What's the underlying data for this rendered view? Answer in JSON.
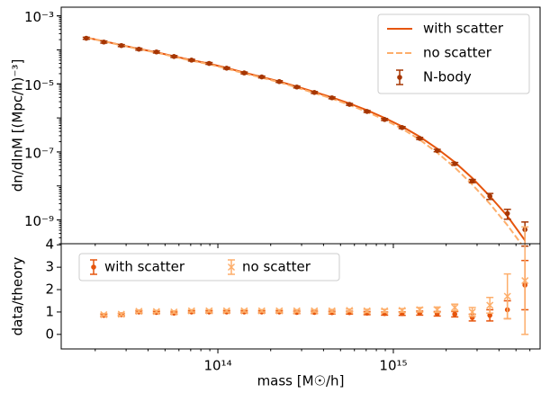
{
  "chart_data": [
    {
      "type": "line",
      "ylabel": "dn/dlnM [(Mpc/h)⁻³]",
      "x": [
        17780000000000.0,
        22390000000000.0,
        28180000000000.0,
        35480000000000.0,
        44670000000000.0,
        56230000000000.0,
        70790000000000.0,
        89130000000000.0,
        112200000000000.0,
        141300000000000.0,
        177800000000000.0,
        223900000000000.0,
        281800000000000.0,
        354800000000000.0,
        446700000000000.0,
        562300000000000.0,
        707900000000000.0,
        891300000000000.0,
        1122000000000000.0,
        1413000000000000.0,
        1778000000000000.0,
        2239000000000000.0,
        2818000000000000.0,
        3548000000000000.0,
        4467000000000000.0,
        5623000000000000.0
      ],
      "series": [
        {
          "name": "with scatter",
          "color": "#e6550d",
          "style": "solid",
          "values": [
            0.00023,
            0.00018,
            0.000138,
            0.000107,
            8.5e-05,
            6.5e-05,
            5e-05,
            3.95e-05,
            2.95e-05,
            2.15e-05,
            1.6e-05,
            1.18e-05,
            8.3e-06,
            5.8e-06,
            4e-06,
            2.65e-06,
            1.68e-06,
            1e-06,
            5.6e-07,
            2.8e-07,
            1.25e-07,
            5e-08,
            1.7e-08,
            5e-09,
            1.3e-09,
            2.5e-10
          ]
        },
        {
          "name": "no scatter",
          "color": "#fdae6b",
          "style": "dashed",
          "values": [
            0.00023,
            0.000178,
            0.000136,
            0.000105,
            8.3e-05,
            6.3e-05,
            4.8e-05,
            3.8e-05,
            2.8e-05,
            2.05e-05,
            1.52e-05,
            1.12e-05,
            7.8e-06,
            5.4e-06,
            3.7e-06,
            2.4e-06,
            1.5e-06,
            8.8e-07,
            4.8e-07,
            2.3e-07,
            9.5e-08,
            3.5e-08,
            1.1e-08,
            3e-09,
            7e-10,
            1.4e-10
          ]
        },
        {
          "name": "N-body",
          "color": "#a63603",
          "style": "errorbar",
          "values": [
            0.00022,
            0.00017,
            0.000134,
            0.000105,
            8.7e-05,
            6.4e-05,
            5e-05,
            4e-05,
            2.9e-05,
            2.1e-05,
            1.6e-05,
            1.17e-05,
            8.1e-06,
            5.6e-06,
            3.9e-06,
            2.5e-06,
            1.55e-06,
            9e-07,
            5.2e-07,
            2.5e-07,
            1.1e-07,
            4.5e-08,
            1.4e-08,
            5e-09,
            1.55e-09,
            5.2e-10
          ],
          "errors": [
            1.5e-05,
            1.2e-05,
            9e-06,
            7e-06,
            6e-06,
            4e-06,
            3e-06,
            2.5e-06,
            1.8e-06,
            1.3e-06,
            1e-06,
            7e-07,
            5e-07,
            3.5e-07,
            2.5e-07,
            1.6e-07,
            1e-07,
            6e-08,
            3.5e-08,
            1.8e-08,
            9e-09,
            4e-09,
            1.5e-09,
            1e-09,
            5e-10,
            3.5e-10
          ]
        }
      ],
      "xlim": [
        12800000000000.0,
        6860000000000000.0
      ],
      "log_x": true,
      "ylim": [
        2e-10,
        0.0018
      ],
      "log_y": true,
      "yticks": [
        {
          "value": 1e-09,
          "label": "10⁻⁹"
        },
        {
          "value": 1e-07,
          "label": "10⁻⁷"
        },
        {
          "value": 1e-05,
          "label": "10⁻⁵"
        },
        {
          "value": 0.001,
          "label": "10⁻³"
        }
      ],
      "minor_ticks": true,
      "legend": "upper right"
    },
    {
      "type": "errorbar",
      "xlabel": "mass [M☉/h]",
      "ylabel": "data/theory",
      "x": [
        17780000000000.0,
        22390000000000.0,
        28180000000000.0,
        35480000000000.0,
        44670000000000.0,
        56230000000000.0,
        70790000000000.0,
        89130000000000.0,
        112200000000000.0,
        141300000000000.0,
        177800000000000.0,
        223900000000000.0,
        281800000000000.0,
        354800000000000.0,
        446700000000000.0,
        562300000000000.0,
        707900000000000.0,
        891300000000000.0,
        1122000000000000.0,
        1413000000000000.0,
        1778000000000000.0,
        2239000000000000.0,
        2818000000000000.0,
        3548000000000000.0,
        4467000000000000.0,
        5623000000000000.0
      ],
      "series": [
        {
          "name": "with scatter",
          "color": "#e6550d",
          "marker": "circle",
          "values": [
            null,
            0.85,
            0.88,
            1.0,
            0.98,
            0.95,
            1.0,
            1.0,
            1.0,
            1.0,
            1.0,
            1.0,
            0.98,
            0.98,
            0.97,
            0.97,
            0.95,
            0.93,
            0.93,
            0.95,
            0.92,
            0.9,
            0.75,
            0.85,
            1.1,
            2.2
          ],
          "errors": [
            null,
            0.05,
            0.05,
            0.05,
            0.05,
            0.05,
            0.05,
            0.05,
            0.05,
            0.05,
            0.05,
            0.05,
            0.05,
            0.05,
            0.06,
            0.06,
            0.07,
            0.07,
            0.08,
            0.09,
            0.1,
            0.12,
            0.15,
            0.25,
            0.4,
            1.1
          ]
        },
        {
          "name": "no scatter",
          "color": "#fdae6b",
          "marker": "x",
          "values": [
            null,
            0.88,
            0.9,
            1.03,
            1.02,
            1.0,
            1.05,
            1.05,
            1.05,
            1.05,
            1.05,
            1.05,
            1.05,
            1.05,
            1.05,
            1.07,
            1.05,
            1.05,
            1.07,
            1.1,
            1.1,
            1.2,
            1.0,
            1.3,
            1.7,
            2.4
          ],
          "errors": [
            null,
            0.05,
            0.05,
            0.05,
            0.05,
            0.05,
            0.05,
            0.05,
            0.05,
            0.05,
            0.05,
            0.05,
            0.05,
            0.05,
            0.06,
            0.06,
            0.07,
            0.07,
            0.08,
            0.1,
            0.12,
            0.15,
            0.2,
            0.35,
            1.0,
            2.4
          ]
        }
      ],
      "xlim": [
        12800000000000.0,
        6860000000000000.0
      ],
      "log_x": true,
      "xticks": [
        {
          "value": 100000000000000.0,
          "label": "10¹⁴"
        },
        {
          "value": 1000000000000000.0,
          "label": "10¹⁵"
        }
      ],
      "ylim": [
        -0.65,
        4.05
      ],
      "yticks": [
        0,
        1,
        2,
        3,
        4
      ],
      "minor_ticks": true,
      "legend": "upper left"
    }
  ]
}
